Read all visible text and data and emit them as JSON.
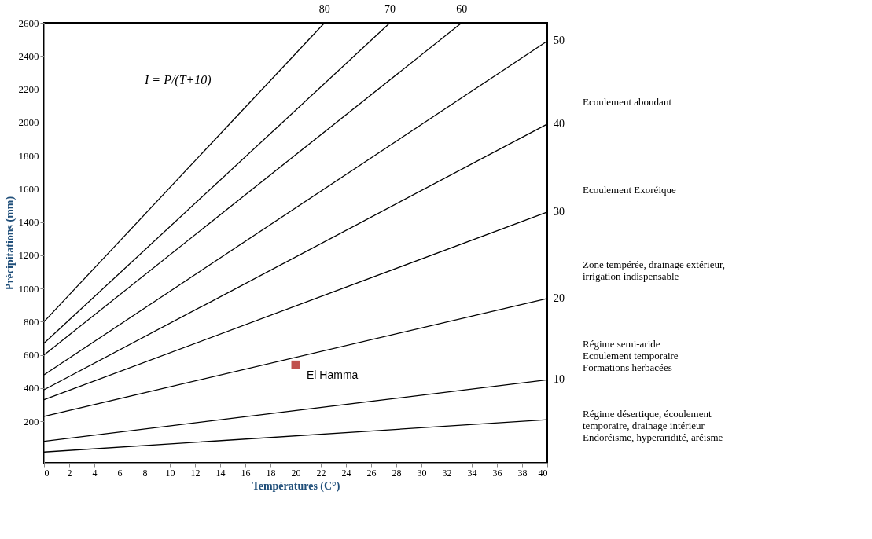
{
  "chart_data": {
    "type": "line",
    "xlabel": "Températures (C°)",
    "ylabel": "Précipitations (mm)",
    "xlim": [
      0,
      40
    ],
    "xticks": [
      0,
      2,
      4,
      6,
      8,
      10,
      12,
      14,
      16,
      18,
      20,
      22,
      24,
      26,
      28,
      30,
      32,
      34,
      36,
      38,
      40
    ],
    "ylim": [
      -50,
      2600
    ],
    "yticks": [
      200,
      400,
      600,
      800,
      1000,
      1200,
      1400,
      1600,
      1800,
      2000,
      2200,
      2400,
      2600
    ],
    "grid": false,
    "legend": false,
    "marker": "none",
    "line_style": "solid",
    "series": [
      {
        "name": "80",
        "color": "#000000",
        "x": [
          0,
          22.3
        ],
        "values": [
          800,
          2600
        ]
      },
      {
        "name": "70",
        "color": "#000000",
        "x": [
          0,
          27.5
        ],
        "values": [
          670,
          2600
        ]
      },
      {
        "name": "60",
        "color": "#000000",
        "x": [
          0,
          33.2
        ],
        "values": [
          600,
          2600
        ]
      },
      {
        "name": "50",
        "color": "#000000",
        "x": [
          0,
          40
        ],
        "values": [
          480,
          2490
        ]
      },
      {
        "name": "40",
        "color": "#000000",
        "x": [
          0,
          40
        ],
        "values": [
          390,
          1990
        ]
      },
      {
        "name": "30",
        "color": "#000000",
        "x": [
          0,
          40
        ],
        "values": [
          330,
          1460
        ]
      },
      {
        "name": "20",
        "color": "#000000",
        "x": [
          0,
          40
        ],
        "values": [
          230,
          940
        ]
      },
      {
        "name": "10",
        "color": "#000000",
        "x": [
          0,
          40
        ],
        "values": [
          80,
          450
        ]
      },
      {
        "color": "#000000",
        "x": [
          0,
          40
        ],
        "values": [
          15,
          210
        ]
      },
      {
        "name": "El Hamma",
        "type": "scatter",
        "marker": "square",
        "color": "#c0504d",
        "x": [
          20
        ],
        "values": [
          540
        ]
      }
    ],
    "annotations": [
      "I = P/(T+10)",
      "Ecoulement abondant",
      "Ecoulement Exoréique",
      "Zone tempérée, drainage extérieur,\nirrigation indispensable",
      "Régime semi-aride\nEcoulement temporaire\nFormations herbacées",
      "Régime désertique, écoulement\ntemporaire, drainage intérieur\nEndoréisme, hyperaridité, aréisme"
    ]
  }
}
